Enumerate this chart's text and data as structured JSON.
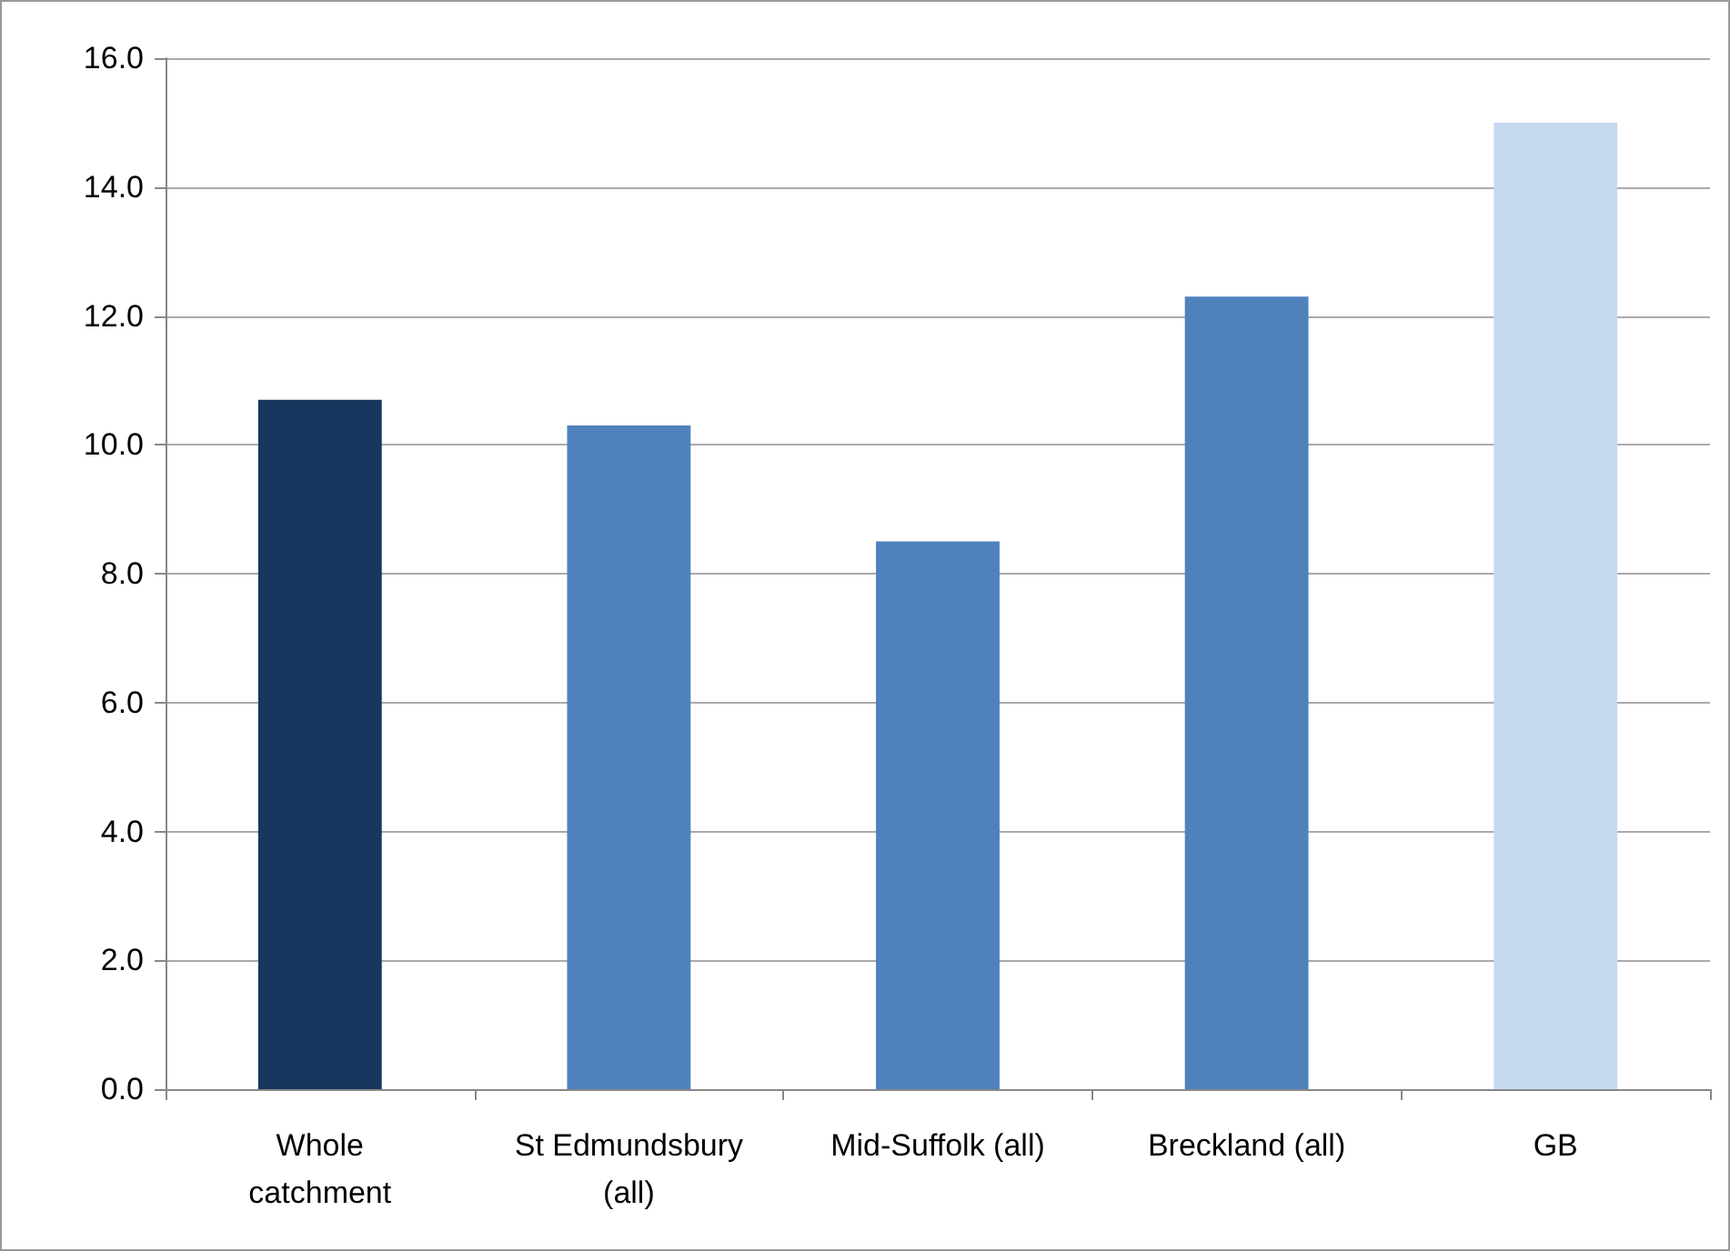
{
  "chart_data": {
    "type": "bar",
    "categories": [
      "Whole\ncatchment",
      "St Edmundsbury\n(all)",
      "Mid-Suffolk (all)",
      "Breckland (all)",
      "GB"
    ],
    "values": [
      10.7,
      10.3,
      8.5,
      12.3,
      15.0
    ],
    "colors": [
      "#17375e",
      "#4f81bd",
      "#4f81bd",
      "#4f81bd",
      "#c6d9f1"
    ],
    "ylim": [
      0,
      16
    ],
    "yticks": [
      {
        "value": 0,
        "label": "0.0"
      },
      {
        "value": 2,
        "label": "2.0"
      },
      {
        "value": 4,
        "label": "4.0"
      },
      {
        "value": 6,
        "label": "6.0"
      },
      {
        "value": 8,
        "label": "8.0"
      },
      {
        "value": 10,
        "label": "10.0"
      },
      {
        "value": 12,
        "label": "12.0"
      },
      {
        "value": 14,
        "label": "14.0"
      },
      {
        "value": 16,
        "label": "16.0"
      }
    ],
    "grid": "y"
  }
}
